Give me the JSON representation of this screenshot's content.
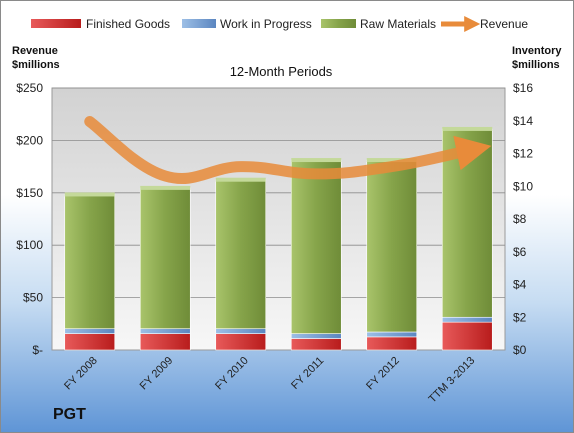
{
  "chart_data": {
    "type": "bar",
    "stacked": true,
    "title": "12-Month Periods",
    "y_left_label": [
      "Revenue",
      "$millions"
    ],
    "y_right_label": [
      "Inventory",
      "$millions"
    ],
    "categories": [
      "FY 2008",
      "FY 2009",
      "FY 2010",
      "FY 2011",
      "FY 2012",
      "TTM 3-2013"
    ],
    "series": [
      {
        "name": "Finished Goods",
        "axis": "right",
        "color": "#d92b2b",
        "values": [
          1.0,
          1.0,
          1.0,
          0.7,
          0.8,
          1.7
        ]
      },
      {
        "name": "Work in Progress",
        "axis": "right",
        "color": "#6f9fd8",
        "values": [
          0.3,
          0.3,
          0.3,
          0.3,
          0.3,
          0.3
        ]
      },
      {
        "name": "Raw Materials",
        "axis": "right",
        "color": "#8fae50",
        "values": [
          8.2,
          8.6,
          9.1,
          10.6,
          10.5,
          11.5
        ]
      },
      {
        "name": "Revenue",
        "axis": "left",
        "type": "line",
        "color": "#e88b3a",
        "values": [
          218,
          166,
          175,
          168,
          175,
          190
        ]
      }
    ],
    "y_left": {
      "ylim": [
        0,
        250
      ],
      "ticks": [
        0,
        50,
        100,
        150,
        200,
        250
      ],
      "tick_labels": [
        "$-",
        "$50",
        "$100",
        "$150",
        "$200",
        "$250"
      ]
    },
    "y_right": {
      "ylim": [
        0,
        16
      ],
      "ticks": [
        0,
        2,
        4,
        6,
        8,
        10,
        12,
        14,
        16
      ],
      "tick_labels": [
        "$0",
        "$2",
        "$4",
        "$6",
        "$8",
        "$10",
        "$12",
        "$14",
        "$16"
      ]
    },
    "legend_placement": "top",
    "grid": true
  },
  "company": "PGT"
}
